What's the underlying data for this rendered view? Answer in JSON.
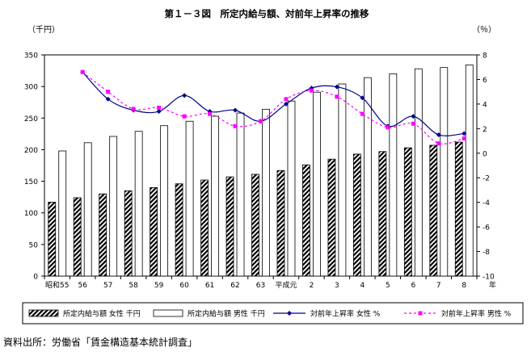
{
  "chart_data": {
    "type": "bar",
    "title": "第１－３図　所定内給与額、対前年上昇率の推移",
    "ylabel_left": "（千円）",
    "ylabel_right": "（％）",
    "x_unit": "年",
    "categories": [
      "昭和55",
      "56",
      "57",
      "58",
      "59",
      "60",
      "61",
      "62",
      "63",
      "平成元",
      "2",
      "3",
      "4",
      "5",
      "6",
      "7",
      "8"
    ],
    "ylim_left": [
      0,
      350
    ],
    "yticks_left": [
      "0",
      "50",
      "100",
      "150",
      "200",
      "250",
      "300",
      "350"
    ],
    "ylim_right": [
      -10,
      8
    ],
    "yticks_right": [
      "-10",
      "-8",
      "-6",
      "-4",
      "-2",
      "0",
      "2",
      "4",
      "6",
      "8"
    ],
    "bar_series": [
      {
        "name": "所定内給与額 女性 千円",
        "pattern": "hatch",
        "values": [
          117,
          124,
          130,
          135,
          140,
          146,
          152,
          157,
          161,
          167,
          176,
          185,
          193,
          197,
          203,
          207,
          212
        ]
      },
      {
        "name": "所定内給与額 男性 千円",
        "pattern": "white",
        "values": [
          198,
          211,
          221,
          229,
          238,
          245,
          253,
          258,
          264,
          277,
          291,
          304,
          314,
          320,
          328,
          330,
          334
        ]
      }
    ],
    "line_series": [
      {
        "name": "対前年上昇率 女性 %",
        "color": "#00008b",
        "style": "solid",
        "marker": "diamond",
        "values": [
          null,
          6.6,
          4.4,
          3.5,
          3.4,
          4.7,
          3.4,
          3.5,
          2.6,
          4.0,
          5.3,
          5.4,
          4.5,
          2.2,
          3.0,
          1.5,
          1.6
        ]
      },
      {
        "name": "対前年上昇率 男性 %",
        "color": "#ff00ff",
        "style": "dashed",
        "marker": "square",
        "values": [
          null,
          6.6,
          5.0,
          3.6,
          3.7,
          3.0,
          3.2,
          2.2,
          2.6,
          4.4,
          5.1,
          4.6,
          3.2,
          2.1,
          2.4,
          0.8,
          1.2
        ]
      }
    ],
    "legend": "bottom",
    "grid": false
  },
  "source_note": "資料出所：労働省「賃金構造基本統計調査」"
}
